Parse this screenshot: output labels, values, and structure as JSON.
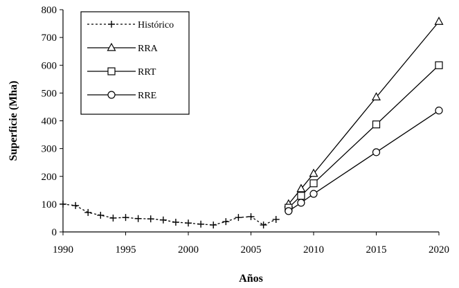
{
  "chart_data": {
    "type": "line",
    "xlabel": "Años",
    "ylabel": "Superficie  (Mha)",
    "xlim": [
      1990,
      2020
    ],
    "ylim": [
      0,
      800
    ],
    "x_ticks": [
      1990,
      1995,
      2000,
      2005,
      2010,
      2015,
      2020
    ],
    "y_ticks": [
      0,
      100,
      200,
      300,
      400,
      500,
      600,
      700,
      800
    ],
    "grid": false,
    "legend_position": "top-left",
    "series": [
      {
        "name": "Histórico",
        "style": "dotted",
        "marker": "plus",
        "x": [
          1990,
          1991,
          1992,
          1993,
          1994,
          1995,
          1996,
          1997,
          1998,
          1999,
          2000,
          2001,
          2002,
          2003,
          2004,
          2005,
          2006,
          2007
        ],
        "values": [
          100,
          95,
          70,
          60,
          50,
          52,
          48,
          47,
          43,
          35,
          32,
          28,
          25,
          37,
          52,
          55,
          25,
          45
        ]
      },
      {
        "name": "RRA",
        "style": "solid",
        "marker": "triangle",
        "x": [
          2008,
          2009,
          2010,
          2015,
          2020
        ],
        "values": [
          100,
          155,
          210,
          485,
          757
        ]
      },
      {
        "name": "RRT",
        "style": "solid",
        "marker": "square",
        "x": [
          2008,
          2009,
          2010,
          2015,
          2020
        ],
        "values": [
          87,
          130,
          175,
          387,
          600
        ]
      },
      {
        "name": "RRE",
        "style": "solid",
        "marker": "circle",
        "x": [
          2008,
          2009,
          2010,
          2015,
          2020
        ],
        "values": [
          75,
          105,
          137,
          287,
          437
        ]
      }
    ]
  }
}
